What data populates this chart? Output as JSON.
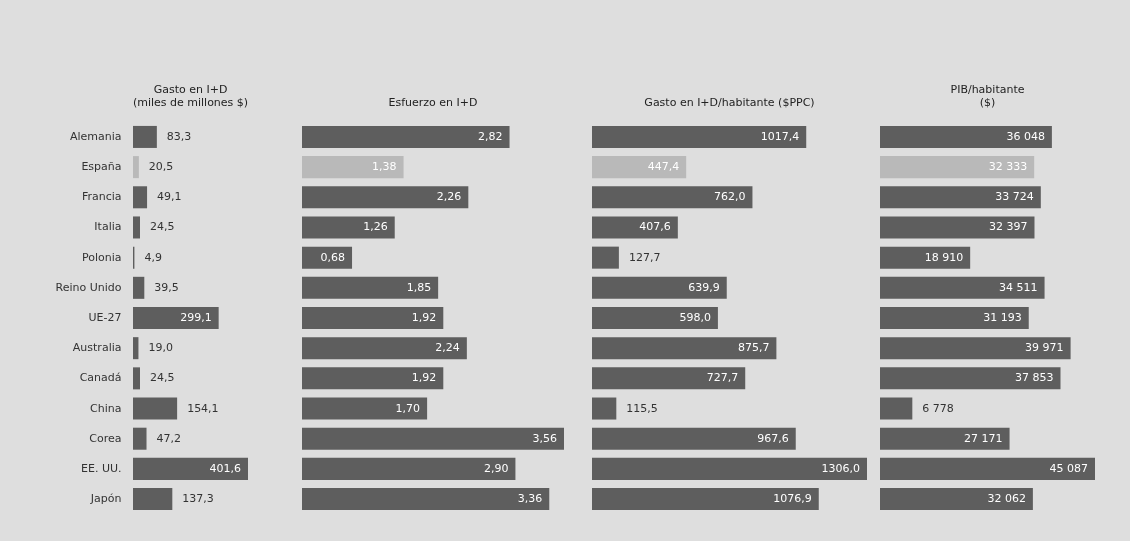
{
  "chart_data": [
    {
      "type": "bar",
      "orientation": "horizontal",
      "title": "Gasto en I+D\n(miles de millones $)",
      "tick_labels": "y",
      "categories": [
        "Alemania",
        "España",
        "Francia",
        "Italia",
        "Polonia",
        "Reino Unido",
        "UE-27",
        "Australia",
        "Canadá",
        "China",
        "Corea",
        "EE. UU.",
        "Japón"
      ],
      "values": [
        83.3,
        20.5,
        49.1,
        24.5,
        4.9,
        39.5,
        299.1,
        19.0,
        24.5,
        154.1,
        47.2,
        401.6,
        137.3
      ],
      "value_labels": [
        "83,3",
        "20,5",
        "49,1",
        "24,5",
        "4,9",
        "39,5",
        "299,1",
        "19,0",
        "24,5",
        "154,1",
        "47,2",
        "401,6",
        "137,3"
      ],
      "colors": [
        "#5e5e5e",
        "#b9b9b9",
        "#5e5e5e",
        "#5e5e5e",
        "#5e5e5e",
        "#5e5e5e",
        "#5e5e5e",
        "#5e5e5e",
        "#5e5e5e",
        "#5e5e5e",
        "#5e5e5e",
        "#5e5e5e",
        "#5e5e5e"
      ]
    },
    {
      "type": "bar",
      "orientation": "horizontal",
      "title": "Esfuerzo en I+D",
      "tick_labels": false,
      "categories": [
        null,
        null,
        null,
        null,
        null,
        null,
        null,
        null,
        null,
        null,
        null,
        null,
        null
      ],
      "values": [
        2.82,
        1.38,
        2.26,
        1.26,
        0.68,
        1.85,
        1.92,
        2.24,
        1.92,
        1.7,
        3.56,
        2.9,
        3.36
      ],
      "value_labels": [
        "2,82",
        "1,38",
        "2,26",
        "1,26",
        "0,68",
        "1,85",
        "1,92",
        "2,24",
        "1,92",
        "1,70",
        "3,56",
        "2,90",
        "3,36"
      ],
      "colors": [
        "#5e5e5e",
        "#b9b9b9",
        "#5e5e5e",
        "#5e5e5e",
        "#5e5e5e",
        "#5e5e5e",
        "#5e5e5e",
        "#5e5e5e",
        "#5e5e5e",
        "#5e5e5e",
        "#5e5e5e",
        "#5e5e5e",
        "#5e5e5e"
      ]
    },
    {
      "type": "bar",
      "orientation": "horizontal",
      "title": "Gasto en I+D/habitante ($PPC)",
      "tick_labels": false,
      "categories": [
        null,
        null,
        null,
        null,
        null,
        null,
        null,
        null,
        null,
        null,
        null,
        null,
        null
      ],
      "values": [
        1017.4,
        447.4,
        762.0,
        407.6,
        127.7,
        639.9,
        598.0,
        875.7,
        727.7,
        115.5,
        967.6,
        1306.0,
        1076.9
      ],
      "value_labels": [
        "1017,4",
        "447,4",
        "762,0",
        "407,6",
        "127,7",
        "639,9",
        "598,0",
        "875,7",
        "727,7",
        "115,5",
        "967,6",
        "1306,0",
        "1076,9"
      ],
      "colors": [
        "#5e5e5e",
        "#b9b9b9",
        "#5e5e5e",
        "#5e5e5e",
        "#5e5e5e",
        "#5e5e5e",
        "#5e5e5e",
        "#5e5e5e",
        "#5e5e5e",
        "#5e5e5e",
        "#5e5e5e",
        "#5e5e5e",
        "#5e5e5e"
      ]
    },
    {
      "type": "bar",
      "orientation": "horizontal",
      "title": "PIB/habitante\n($)",
      "tick_labels": false,
      "categories": [
        null,
        null,
        null,
        null,
        null,
        null,
        null,
        null,
        null,
        null,
        null,
        null,
        null
      ],
      "values": [
        36048,
        32333,
        33724,
        32397,
        18910,
        34511,
        31193,
        39971,
        37853,
        6778,
        27171,
        45087,
        32062
      ],
      "value_labels": [
        "36 048",
        "32 333",
        "33 724",
        "32 397",
        "18 910",
        "34 511",
        "31 193",
        "39 971",
        "37 853",
        "6 778",
        "27 171",
        "45 087",
        "32 062"
      ],
      "colors": [
        "#5e5e5e",
        "#b9b9b9",
        "#5e5e5e",
        "#5e5e5e",
        "#5e5e5e",
        "#5e5e5e",
        "#5e5e5e",
        "#5e5e5e",
        "#5e5e5e",
        "#5e5e5e",
        "#5e5e5e",
        "#5e5e5e",
        "#5e5e5e"
      ]
    }
  ]
}
